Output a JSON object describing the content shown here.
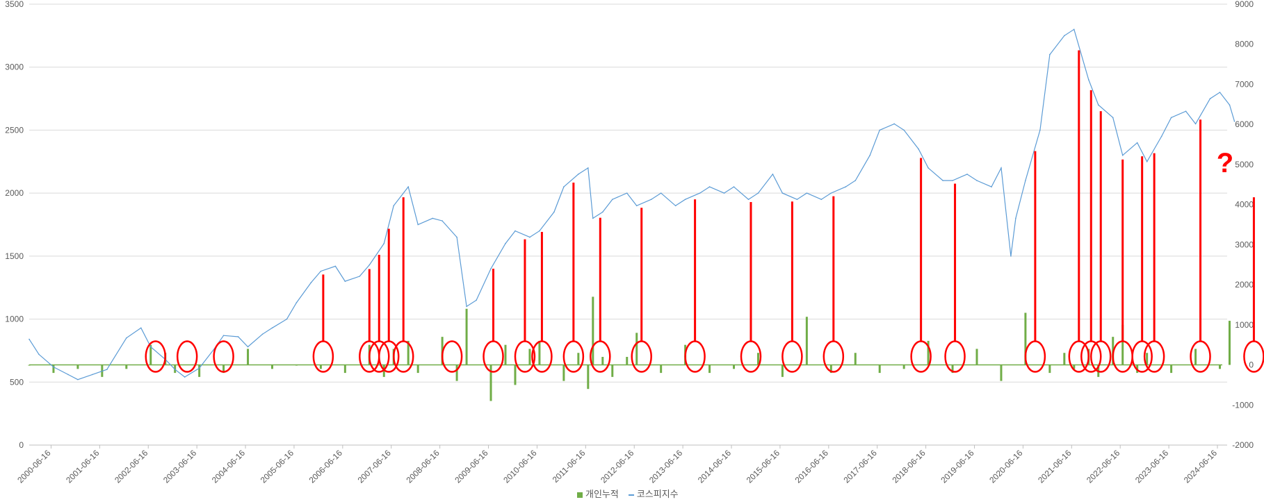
{
  "chart_data": {
    "type": "line",
    "title": "",
    "xlabel": "",
    "ylabel": "",
    "y_left_range": [
      0,
      3500
    ],
    "y_left_ticks": [
      "0",
      "500",
      "1000",
      "1500",
      "2000",
      "2500",
      "3000",
      "3500"
    ],
    "y_right_range": [
      -2000,
      9000
    ],
    "y_right_ticks": [
      "-2000",
      "-1000",
      "0",
      "1000",
      "2000",
      "3000",
      "4000",
      "5000",
      "6000",
      "7000",
      "8000",
      "9000"
    ],
    "x_ticks": [
      "2000-06-16",
      "2001-06-16",
      "2002-06-16",
      "2003-06-16",
      "2004-06-16",
      "2005-06-16",
      "2006-06-16",
      "2007-06-16",
      "2008-06-16",
      "2009-06-16",
      "2010-06-16",
      "2011-06-16",
      "2012-06-16",
      "2013-06-16",
      "2014-06-16",
      "2015-06-16",
      "2016-06-16",
      "2017-06-16",
      "2018-06-16",
      "2019-06-16",
      "2020-06-16",
      "2021-06-16",
      "2022-06-16",
      "2023-06-16",
      "2024-06-16"
    ],
    "grid": true,
    "legend_position": "bottom",
    "series": [
      {
        "name": "개인누적",
        "kind": "bar",
        "axis": "right",
        "color": "#70ad47",
        "x": [
          2000.0,
          2000.5,
          2001.0,
          2001.5,
          2002.0,
          2002.5,
          2002.8,
          2003.0,
          2003.5,
          2004.0,
          2004.5,
          2005.0,
          2005.5,
          2006.0,
          2006.5,
          2007.0,
          2007.3,
          2007.5,
          2007.8,
          2008.0,
          2008.5,
          2008.8,
          2009.0,
          2009.5,
          2009.8,
          2010.0,
          2010.3,
          2010.5,
          2011.0,
          2011.3,
          2011.5,
          2011.6,
          2011.8,
          2012.0,
          2012.3,
          2012.5,
          2013.0,
          2013.5,
          2014.0,
          2014.5,
          2015.0,
          2015.5,
          2016.0,
          2016.5,
          2017.0,
          2017.5,
          2018.0,
          2018.5,
          2019.0,
          2019.5,
          2020.0,
          2020.5,
          2021.0,
          2021.3,
          2021.5,
          2021.8,
          2022.0,
          2022.3,
          2022.5,
          2022.8,
          2023.0,
          2023.5,
          2024.0,
          2024.5,
          2024.7
        ],
        "values": [
          0,
          -200,
          -100,
          -300,
          -100,
          500,
          300,
          -200,
          -300,
          -200,
          400,
          -100,
          0,
          -100,
          -200,
          500,
          -300,
          400,
          600,
          -200,
          700,
          -400,
          1400,
          -900,
          500,
          -500,
          400,
          600,
          -400,
          300,
          -600,
          1700,
          200,
          -300,
          200,
          800,
          -200,
          500,
          -200,
          -100,
          300,
          -300,
          1200,
          -200,
          300,
          -200,
          -100,
          600,
          -200,
          400,
          -400,
          1300,
          -200,
          300,
          -100,
          400,
          -300,
          700,
          1000,
          -200,
          300,
          -200,
          400,
          -100,
          1100
        ]
      },
      {
        "name": "코스피지수",
        "kind": "line",
        "axis": "left",
        "color": "#5b9bd5",
        "x": [
          2000.0,
          2000.2,
          2000.5,
          2000.8,
          2001.0,
          2001.3,
          2001.6,
          2002.0,
          2002.3,
          2002.5,
          2002.8,
          2003.0,
          2003.2,
          2003.5,
          2003.8,
          2004.0,
          2004.3,
          2004.5,
          2004.8,
          2005.0,
          2005.3,
          2005.5,
          2005.8,
          2006.0,
          2006.3,
          2006.5,
          2006.8,
          2007.0,
          2007.3,
          2007.5,
          2007.8,
          2008.0,
          2008.3,
          2008.5,
          2008.8,
          2009.0,
          2009.2,
          2009.5,
          2009.8,
          2010.0,
          2010.3,
          2010.5,
          2010.8,
          2011.0,
          2011.3,
          2011.5,
          2011.6,
          2011.8,
          2012.0,
          2012.3,
          2012.5,
          2012.8,
          2013.0,
          2013.3,
          2013.5,
          2013.8,
          2014.0,
          2014.3,
          2014.5,
          2014.8,
          2015.0,
          2015.3,
          2015.5,
          2015.8,
          2016.0,
          2016.3,
          2016.5,
          2016.8,
          2017.0,
          2017.3,
          2017.5,
          2017.8,
          2018.0,
          2018.3,
          2018.5,
          2018.8,
          2019.0,
          2019.3,
          2019.5,
          2019.8,
          2020.0,
          2020.2,
          2020.3,
          2020.5,
          2020.8,
          2021.0,
          2021.3,
          2021.5,
          2021.8,
          2022.0,
          2022.3,
          2022.5,
          2022.8,
          2023.0,
          2023.3,
          2023.5,
          2023.8,
          2024.0,
          2024.3,
          2024.5,
          2024.7,
          2024.8
        ],
        "values": [
          840,
          720,
          620,
          560,
          520,
          560,
          600,
          850,
          930,
          780,
          680,
          600,
          540,
          610,
          760,
          870,
          860,
          780,
          880,
          930,
          1000,
          1130,
          1290,
          1380,
          1420,
          1300,
          1340,
          1430,
          1600,
          1900,
          2050,
          1750,
          1800,
          1780,
          1650,
          1100,
          1150,
          1400,
          1600,
          1700,
          1650,
          1700,
          1850,
          2050,
          2150,
          2200,
          1800,
          1850,
          1950,
          2000,
          1900,
          1950,
          2000,
          1900,
          1950,
          2000,
          2050,
          2000,
          2050,
          1950,
          2000,
          2150,
          2000,
          1950,
          2000,
          1950,
          2000,
          2050,
          2100,
          2300,
          2500,
          2550,
          2500,
          2350,
          2200,
          2100,
          2100,
          2150,
          2100,
          2050,
          2200,
          1500,
          1800,
          2100,
          2500,
          3100,
          3250,
          3300,
          2900,
          2700,
          2600,
          2300,
          2400,
          2250,
          2450,
          2600,
          2650,
          2550,
          2750,
          2800,
          2700,
          2570
        ]
      }
    ],
    "annotations": {
      "color": "#ff0000",
      "marker": "?",
      "ellipses_at_x": [
        2002.6,
        2003.25,
        2004.0,
        2006.05,
        2007.0,
        2007.2,
        2007.4,
        2007.7,
        2008.7,
        2009.55,
        2010.2,
        2010.55,
        2011.2,
        2011.75,
        2012.6,
        2013.7,
        2014.85,
        2015.7,
        2016.55,
        2018.35,
        2019.05,
        2020.7,
        2021.6,
        2021.85,
        2022.05,
        2022.5,
        2022.9,
        2023.15,
        2024.1,
        2025.2
      ],
      "lines_at_x": [
        2006.05,
        2007.0,
        2007.2,
        2007.4,
        2007.7,
        2009.55,
        2010.2,
        2010.55,
        2011.2,
        2011.75,
        2012.6,
        2013.7,
        2014.85,
        2015.7,
        2016.55,
        2018.35,
        2019.05,
        2020.7,
        2021.6,
        2021.85,
        2022.05,
        2022.5,
        2022.9,
        2023.15,
        2024.1,
        2025.2
      ]
    }
  }
}
